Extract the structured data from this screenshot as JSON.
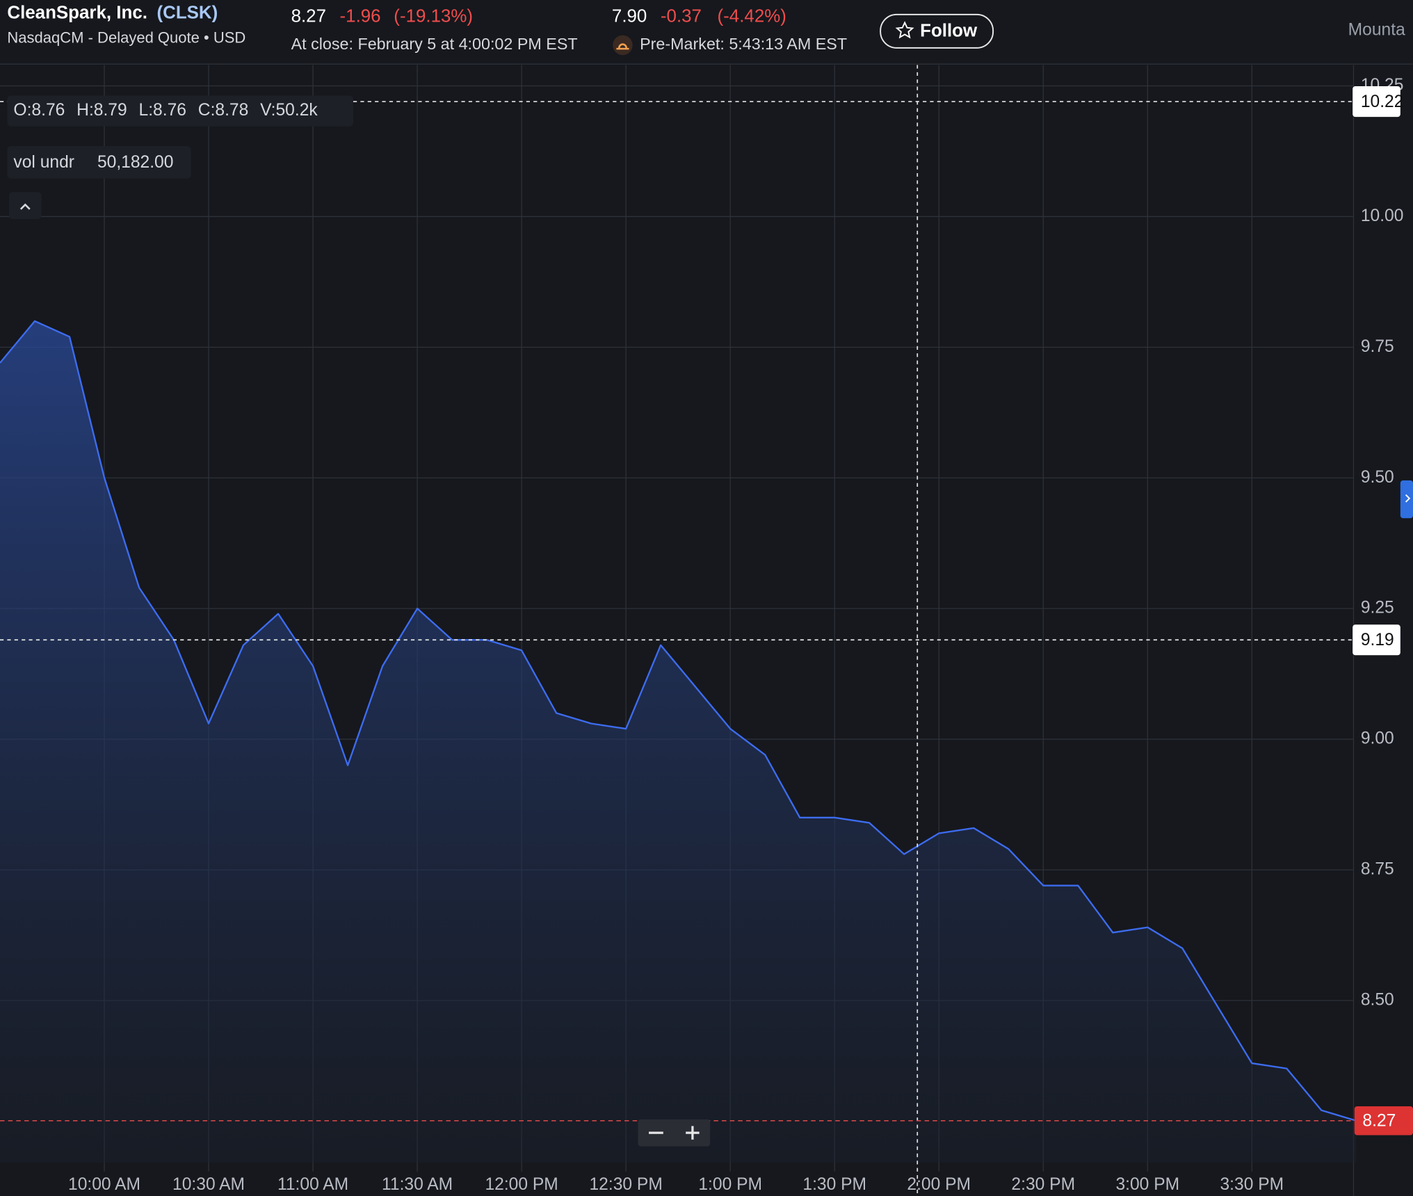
{
  "header": {
    "company": "CleanSpark, Inc.",
    "ticker": "(CLSK)",
    "exchange": "NasdaqCM - Delayed Quote • USD",
    "close_price": "8.27",
    "close_change": "-1.96",
    "close_change_pct": "(-19.13%)",
    "close_time": "At close: February 5 at 4:00:02 PM EST",
    "pre_price": "7.90",
    "pre_change": "-0.37",
    "pre_change_pct": "(-4.42%)",
    "pre_time": "Pre-Market: 5:43:13 AM EST",
    "follow": "Follow",
    "location": "Mounta"
  },
  "legend": {
    "ohlcv": [
      "O:8.76",
      "H:8.79",
      "L:8.76",
      "C:8.78",
      "V:50.2k"
    ],
    "vol_label": "vol undr",
    "vol_value": "50,182.00"
  },
  "chart_data": {
    "type": "area",
    "color": "#3d6cf0",
    "grid": true,
    "x": [
      "9:30 AM",
      "9:40 AM",
      "9:50 AM",
      "10:00 AM",
      "10:10 AM",
      "10:20 AM",
      "10:30 AM",
      "10:40 AM",
      "10:50 AM",
      "11:00 AM",
      "11:10 AM",
      "11:20 AM",
      "11:30 AM",
      "11:40 AM",
      "11:50 AM",
      "12:00 PM",
      "12:10 PM",
      "12:20 PM",
      "12:30 PM",
      "12:40 PM",
      "12:50 PM",
      "1:00 PM",
      "1:10 PM",
      "1:20 PM",
      "1:30 PM",
      "1:40 PM",
      "1:50 PM",
      "2:00 PM",
      "2:10 PM",
      "2:20 PM",
      "2:30 PM",
      "2:40 PM",
      "2:50 PM",
      "3:00 PM",
      "3:10 PM",
      "3:20 PM",
      "3:30 PM",
      "3:40 PM",
      "3:50 PM",
      "4:00 PM"
    ],
    "series": [
      {
        "name": "CLSK",
        "color": "#3d6cf0",
        "values": [
          9.72,
          9.8,
          9.77,
          9.5,
          9.29,
          9.19,
          9.03,
          9.18,
          9.24,
          9.14,
          8.95,
          9.14,
          9.25,
          9.19,
          9.19,
          9.17,
          9.05,
          9.03,
          9.02,
          9.18,
          9.1,
          9.02,
          8.97,
          8.85,
          8.85,
          8.84,
          8.78,
          8.82,
          8.83,
          8.79,
          8.72,
          8.72,
          8.63,
          8.64,
          8.6,
          8.49,
          8.38,
          8.37,
          8.29,
          8.27
        ]
      }
    ],
    "xticks": [
      "10:00 AM",
      "10:30 AM",
      "11:00 AM",
      "11:30 AM",
      "12:00 PM",
      "12:30 PM",
      "1:00 PM",
      "1:30 PM",
      "2:00 PM",
      "2:30 PM",
      "3:00 PM",
      "3:30 PM"
    ],
    "ylim": [
      8.19,
      10.29
    ],
    "yticks": [
      {
        "value": 8.5,
        "label": "8.50"
      },
      8.75,
      {
        "value": 9,
        "label": "9.00"
      },
      9.25,
      {
        "value": 9.5,
        "label": "9.50"
      },
      9.75,
      {
        "value": 10,
        "label": "10.00"
      },
      {
        "value": 10.25,
        "label": "10.25"
      }
    ],
    "crosshair_prices": [
      10.22,
      9.19
    ],
    "last_price": 8.27
  }
}
